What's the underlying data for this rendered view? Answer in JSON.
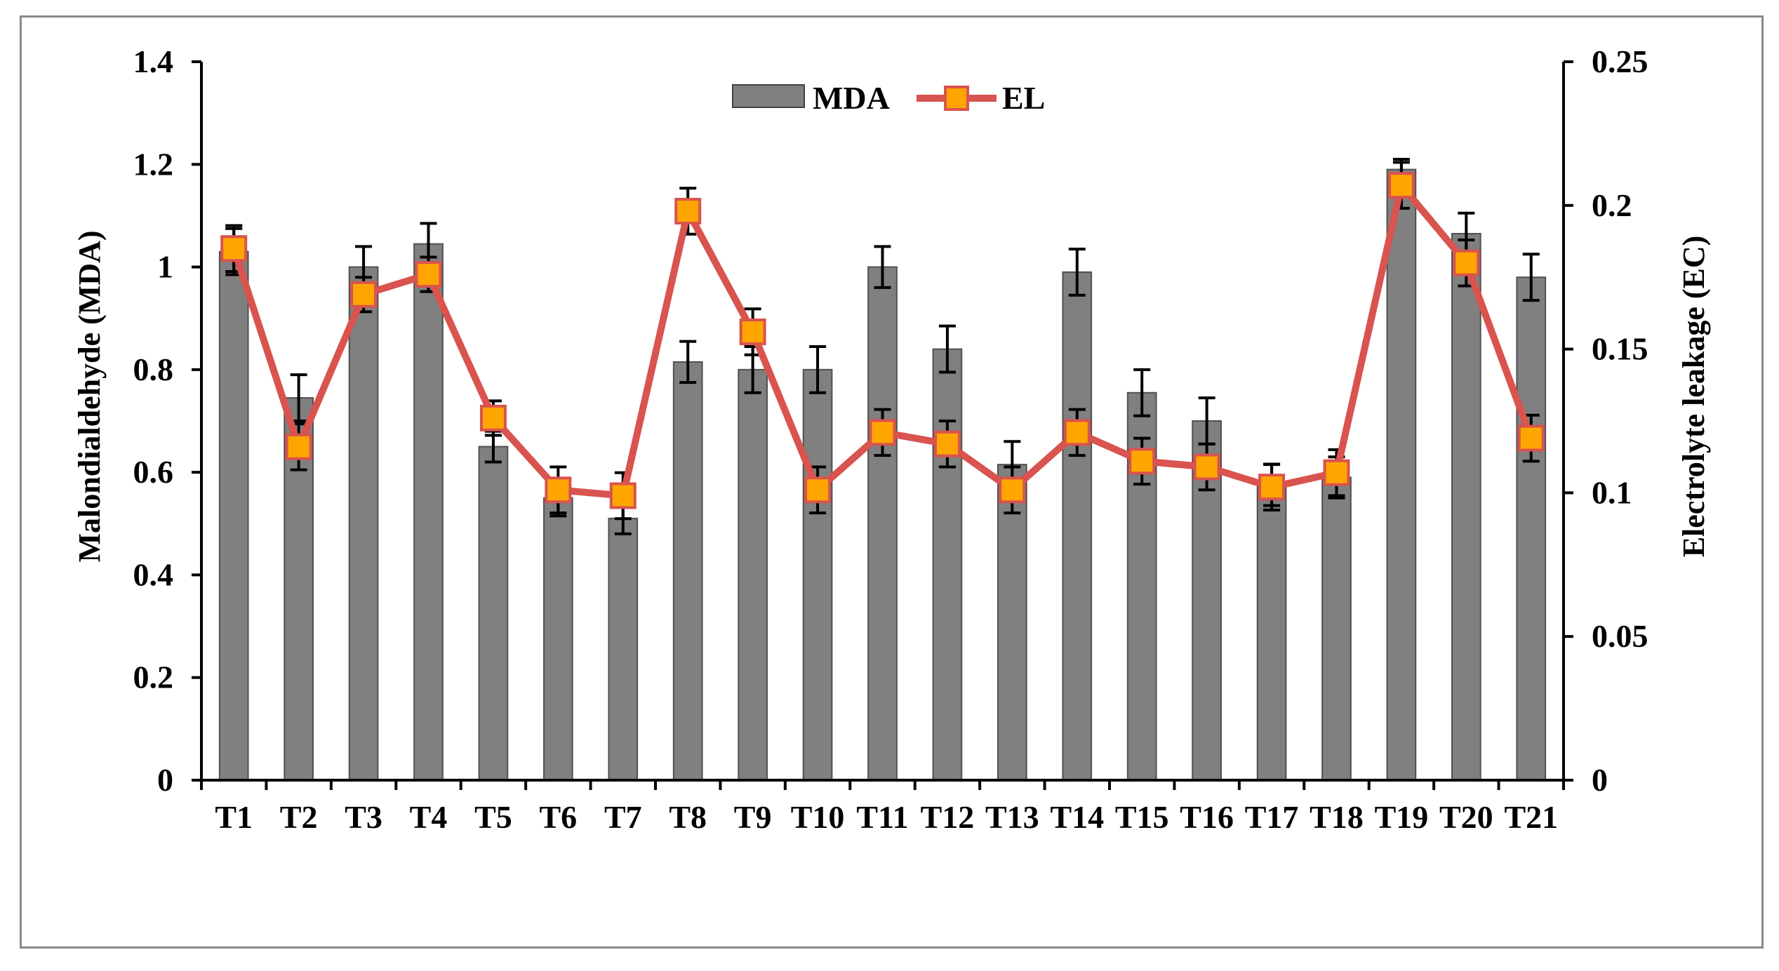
{
  "chart_data": {
    "type": "bar+line",
    "categories": [
      "T1",
      "T2",
      "T3",
      "T4",
      "T5",
      "T6",
      "T7",
      "T8",
      "T9",
      "T10",
      "T11",
      "T12",
      "T13",
      "T14",
      "T15",
      "T16",
      "T17",
      "T18",
      "T19",
      "T20",
      "T21"
    ],
    "series": [
      {
        "name": "MDA",
        "type": "bar",
        "axis": "left",
        "color": "#808080",
        "values": [
          1.03,
          0.745,
          1.0,
          1.045,
          0.65,
          0.55,
          0.51,
          0.815,
          0.8,
          0.8,
          1.0,
          0.84,
          0.615,
          0.99,
          0.755,
          0.7,
          0.575,
          0.59,
          1.19,
          1.065,
          0.98
        ],
        "errors": [
          0.045,
          0.045,
          0.04,
          0.04,
          0.03,
          0.035,
          0.03,
          0.04,
          0.045,
          0.045,
          0.04,
          0.045,
          0.045,
          0.045,
          0.045,
          0.045,
          0.04,
          0.04,
          0.02,
          0.04,
          0.045
        ]
      },
      {
        "name": "EL",
        "type": "line",
        "axis": "right",
        "line_color": "#d9534f",
        "marker_color": "#ffa500",
        "marker_edge": "#d9534f",
        "values": [
          0.185,
          0.116,
          0.169,
          0.176,
          0.126,
          0.101,
          0.099,
          0.198,
          0.156,
          0.101,
          0.121,
          0.117,
          0.101,
          0.121,
          0.111,
          0.109,
          0.102,
          0.107,
          0.207,
          0.18,
          0.119
        ],
        "errors": [
          0.008,
          0.008,
          0.006,
          0.006,
          0.006,
          0.008,
          0.008,
          0.008,
          0.008,
          0.008,
          0.008,
          0.008,
          0.008,
          0.008,
          0.008,
          0.008,
          0.008,
          0.008,
          0.008,
          0.008,
          0.008
        ]
      }
    ],
    "title": "",
    "ylabel_left": "Malondialdehyde  (MDA)",
    "ylabel_right": "Electrolyte leakage (EC)",
    "ylim_left": [
      0,
      1.4
    ],
    "ylim_right": [
      0,
      0.25
    ],
    "yticks_left": [
      "0",
      "0.2",
      "0.4",
      "0.6",
      "0.8",
      "1",
      "1.2",
      "1.4"
    ],
    "yticks_right": [
      "0",
      "0.05",
      "0.1",
      "0.15",
      "0.2",
      "0.25"
    ],
    "legend": {
      "position": "top-center",
      "entries": [
        "MDA",
        "EL"
      ]
    },
    "grid": false
  }
}
